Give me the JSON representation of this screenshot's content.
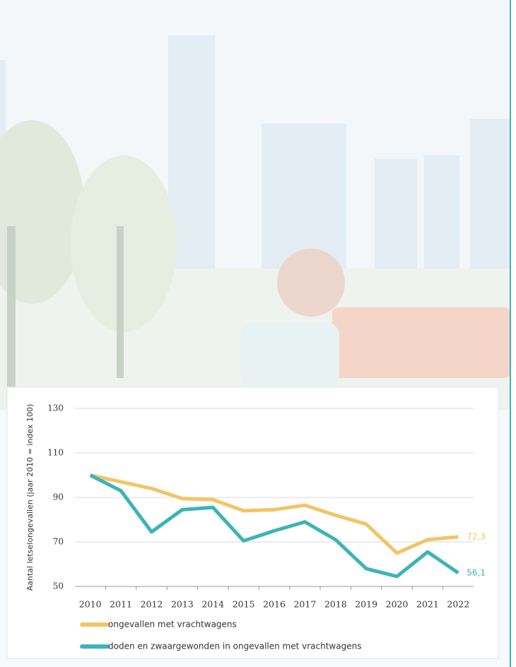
{
  "chart_data": {
    "type": "line",
    "y_axis_label": "Aantal letselongevallen (jaar 2010 = index 100)",
    "categories": [
      "2010",
      "2011",
      "2012",
      "2013",
      "2014",
      "2015",
      "2016",
      "2017",
      "2018",
      "2019",
      "2020",
      "2021",
      "2022"
    ],
    "series": [
      {
        "name": "ongevallen met vrachtwagens",
        "color": "#f2c466",
        "values": [
          100,
          97,
          94,
          89.5,
          89,
          84,
          84.5,
          86.5,
          82,
          78,
          65,
          71,
          72.3
        ],
        "value_labels": [
          null,
          null,
          null,
          null,
          null,
          null,
          null,
          null,
          null,
          null,
          null,
          null,
          "72,3"
        ]
      },
      {
        "name": "doden en zwaargewonden in ongevallen met vrachtwagens",
        "color": "#3cb4b6",
        "values": [
          100,
          93,
          74.5,
          84.5,
          85.5,
          70.5,
          75,
          79,
          71,
          58,
          54.5,
          65.5,
          56.1
        ],
        "value_labels": [
          null,
          null,
          null,
          null,
          null,
          null,
          null,
          null,
          null,
          null,
          null,
          null,
          "56,1"
        ]
      }
    ],
    "ylim": [
      50,
      130
    ],
    "yticks": [
      50,
      70,
      90,
      110,
      130
    ],
    "grid": true
  }
}
